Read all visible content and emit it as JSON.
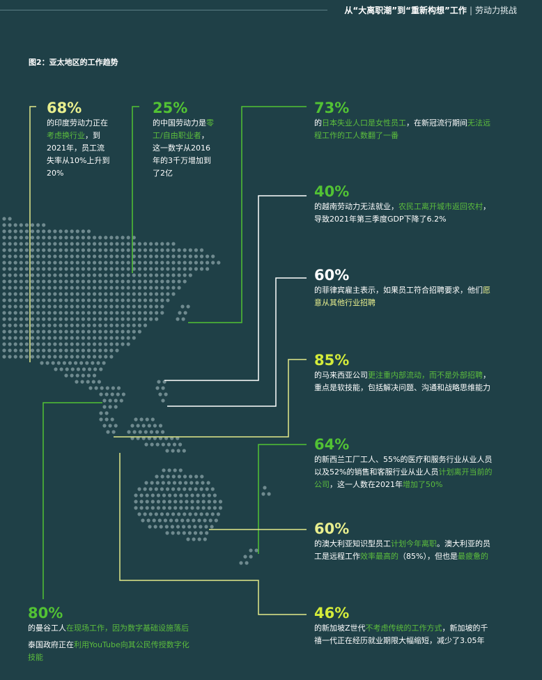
{
  "header": {
    "title": "从“大离职潮”到“重新构想”工作",
    "section": "劳动力挑战"
  },
  "figure_title": "图2：亚太地区的工作趋势",
  "colors": {
    "background": "#1f4047",
    "dots": "#6f8a8f",
    "yellow_line": "#e3e98a",
    "green_line": "#52c234",
    "highlight_text": "#5cbd3d",
    "white_line": "#ffffff"
  },
  "stats": {
    "india": {
      "pct": "68%",
      "t1": "的印度劳动力正在",
      "t2": "考虑换行业",
      "t3": "，到",
      "t4": "2021年，员工流",
      "t5": "失率从10%上升到",
      "t6": "20%"
    },
    "china": {
      "pct": "25%",
      "t1": "的中国劳动力是",
      "t2": "零",
      "t3": "工/自由职业者",
      "t4": "，",
      "t5": "这一数字从2016",
      "t6": "年的3千万增加到",
      "t7": "了2亿"
    },
    "japan": {
      "pct": "73%",
      "t1": "的",
      "t2": "日本失业人口是女性员工",
      "t3": "，在新冠流行期间",
      "t4": "无法远",
      "t5": "程工作的工人数翻了一番"
    },
    "vietnam": {
      "pct": "40%",
      "t1": "的越南劳动力无法就业，",
      "t2": "农民工离开城市返回农村",
      "t3": "，",
      "t4": "导致2021年第三季度GDP下降了6.2%"
    },
    "philippines": {
      "pct": "60%",
      "t1": "的菲律宾雇主表示，如果员工符合招聘要求，他们",
      "t2": "愿",
      "t3": "意从其他行业招聘"
    },
    "malaysia": {
      "pct": "85%",
      "t1": "的马来西亚公司",
      "t2": "更注重内部流动，而不是外部招聘",
      "t3": "，",
      "t4": "重点是软技能，包括解决问题、沟通和战略思维能力"
    },
    "newzealand": {
      "pct": "64%",
      "t1": "的新西兰工厂工人、55%的医疗和服务行业从业人员",
      "t2": "以及52%的销售和客服行业从业人员",
      "t3": "计划离开当前的",
      "t4": "公司",
      "t5": "，这一人数在2021年",
      "t6": "增加了50%"
    },
    "australia": {
      "pct": "60%",
      "t1": "的澳大利亚知识型员工",
      "t2": "计划今年离职",
      "t3": "。澳大利亚的员",
      "t4": "工是远程工作",
      "t5": "效率最高的",
      "t6": "（85%），但也是",
      "t7": "最疲惫的"
    },
    "singapore": {
      "pct": "46%",
      "t1": "的新加坡Z世代",
      "t2": "不考虑传统的工作方式",
      "t3": "，新加坡的千",
      "t4": "禧一代正在经历就业期限大幅缩短，减少了3.05年"
    },
    "bangkok": {
      "pct": "80%",
      "t1": "的曼谷工人",
      "t2": "在现场工作，因为数字基础设施落后",
      "t3": "泰国政府正在",
      "t4": "利用YouTube向其公民传授数字化",
      "t5": "技能"
    }
  }
}
